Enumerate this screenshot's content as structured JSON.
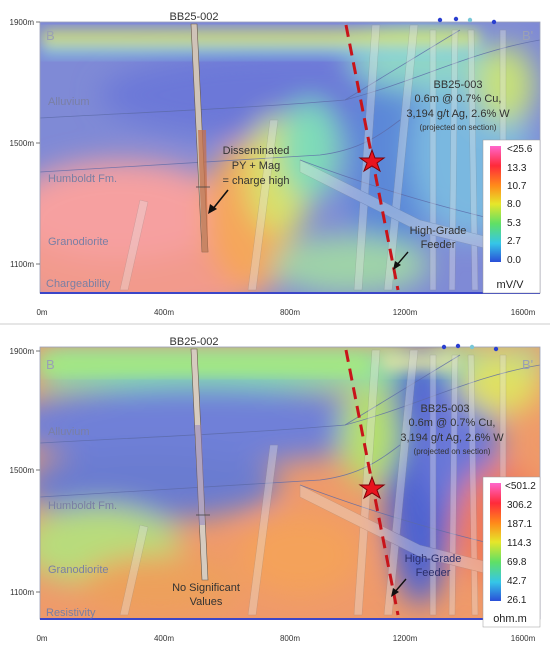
{
  "top": {
    "y_ticks": [
      "1900m",
      "1500m",
      "1100m"
    ],
    "x_ticks": [
      "0m",
      "400m",
      "800m",
      "1200m",
      "1600m"
    ],
    "section_left": "B",
    "section_right": "B'",
    "drillhole": "BB25-002",
    "units": [
      "Alluvium",
      "Humboldt Fm.",
      "Granodiorite"
    ],
    "method": "Chargeability",
    "annotation": [
      "Disseminated",
      "PY + Mag",
      "= charge high"
    ],
    "intercept": {
      "hole": "BB25-003",
      "line1": "0.6m @ 0.7% Cu,",
      "line2": "3,194 g/t Ag,  2.6% W",
      "note": "(projected on section)"
    },
    "feeder": [
      "High-Grade",
      "Feeder"
    ],
    "legend": {
      "values": [
        "<25.6",
        "13.3",
        "10.7",
        "8.0",
        "5.3",
        "2.7",
        "0.0"
      ],
      "unit": "mV/V",
      "colors": [
        "#ff66cc",
        "#ff2a3a",
        "#ff8a1a",
        "#e6e62a",
        "#5fe066",
        "#35c6e8",
        "#2a4fd8"
      ]
    }
  },
  "bottom": {
    "y_ticks": [
      "1900m",
      "1500m",
      "1100m"
    ],
    "x_ticks": [
      "0m",
      "400m",
      "800m",
      "1200m",
      "1600m"
    ],
    "section_left": "B",
    "section_right": "B'",
    "drillhole": "BB25-002",
    "units": [
      "Alluvium",
      "Humboldt Fm.",
      "Granodiorite"
    ],
    "method": "Resistivity",
    "annotation": [
      "No Significant",
      "Values"
    ],
    "intercept": {
      "hole": "BB25-003",
      "line1": "0.6m @ 0.7% Cu,",
      "line2": "3,194 g/t Ag,  2.6% W",
      "note": "(projected on section)"
    },
    "feeder": [
      "High-Grade",
      "Feeder"
    ],
    "legend": {
      "values": [
        "<501.2",
        "306.2",
        "187.1",
        "114.3",
        "69.8",
        "42.7",
        "26.1"
      ],
      "unit": "ohm.m",
      "colors": [
        "#ff66cc",
        "#ff2a3a",
        "#ff8a1a",
        "#e6e62a",
        "#5fe066",
        "#35c6e8",
        "#2a4fd8"
      ]
    }
  }
}
